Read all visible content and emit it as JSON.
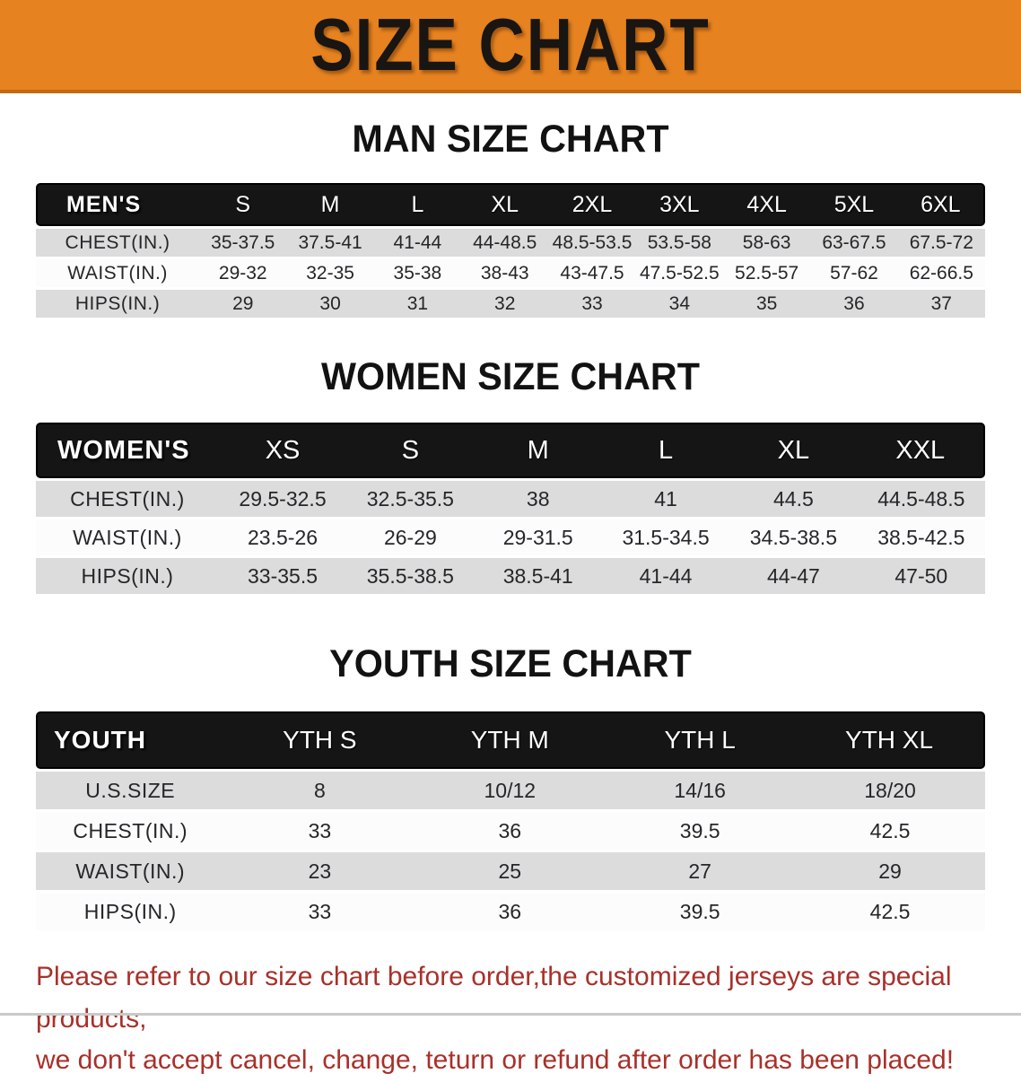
{
  "banner": {
    "title": "SIZE CHART"
  },
  "colors": {
    "banner_orange": "#E6821F",
    "banner_border": "#C4690F",
    "header_black": "#151515",
    "stripe_gray": "#DCDCDC",
    "row_white": "#FCFCFC",
    "disclaimer_red": "#A9302A"
  },
  "sections": {
    "man": {
      "heading": "MAN SIZE CHART",
      "table": {
        "header_label": "MEN'S",
        "sizes": [
          "S",
          "M",
          "L",
          "XL",
          "2XL",
          "3XL",
          "4XL",
          "5XL",
          "6XL"
        ],
        "rows": [
          {
            "label": "CHEST(IN.)",
            "values": [
              "35-37.5",
              "37.5-41",
              "41-44",
              "44-48.5",
              "48.5-53.5",
              "53.5-58",
              "58-63",
              "63-67.5",
              "67.5-72"
            ]
          },
          {
            "label": "WAIST(IN.)",
            "values": [
              "29-32",
              "32-35",
              "35-38",
              "38-43",
              "43-47.5",
              "47.5-52.5",
              "52.5-57",
              "57-62",
              "62-66.5"
            ]
          },
          {
            "label": "HIPS(IN.)",
            "values": [
              "29",
              "30",
              "31",
              "32",
              "33",
              "34",
              "35",
              "36",
              "37"
            ]
          }
        ]
      }
    },
    "women": {
      "heading": "WOMEN SIZE CHART",
      "table": {
        "header_label": "WOMEN'S",
        "sizes": [
          "XS",
          "S",
          "M",
          "L",
          "XL",
          "XXL"
        ],
        "rows": [
          {
            "label": "CHEST(IN.)",
            "values": [
              "29.5-32.5",
              "32.5-35.5",
              "38",
              "41",
              "44.5",
              "44.5-48.5"
            ]
          },
          {
            "label": "WAIST(IN.)",
            "values": [
              "23.5-26",
              "26-29",
              "29-31.5",
              "31.5-34.5",
              "34.5-38.5",
              "38.5-42.5"
            ]
          },
          {
            "label": "HIPS(IN.)",
            "values": [
              "33-35.5",
              "35.5-38.5",
              "38.5-41",
              "41-44",
              "44-47",
              "47-50"
            ]
          }
        ]
      }
    },
    "youth": {
      "heading": "YOUTH SIZE CHART",
      "table": {
        "header_label": "YOUTH",
        "sizes": [
          "YTH S",
          "YTH M",
          "YTH L",
          "YTH XL"
        ],
        "rows": [
          {
            "label": "U.S.SIZE",
            "values": [
              "8",
              "10/12",
              "14/16",
              "18/20"
            ]
          },
          {
            "label": "CHEST(IN.)",
            "values": [
              "33",
              "36",
              "39.5",
              "42.5"
            ]
          },
          {
            "label": "WAIST(IN.)",
            "values": [
              "23",
              "25",
              "27",
              "29"
            ]
          },
          {
            "label": "HIPS(IN.)",
            "values": [
              "33",
              "36",
              "39.5",
              "42.5"
            ]
          }
        ]
      }
    }
  },
  "disclaimer": {
    "line1": "Please refer to our size chart before order,the customized jerseys are special products,",
    "line2": "we don't accept cancel, change, teturn or refund after order has been placed!"
  },
  "chart_data": [
    {
      "type": "table",
      "title": "MAN SIZE CHART",
      "columns": [
        "MEN'S",
        "S",
        "M",
        "L",
        "XL",
        "2XL",
        "3XL",
        "4XL",
        "5XL",
        "6XL"
      ],
      "rows": [
        [
          "CHEST(IN.)",
          "35-37.5",
          "37.5-41",
          "41-44",
          "44-48.5",
          "48.5-53.5",
          "53.5-58",
          "58-63",
          "63-67.5",
          "67.5-72"
        ],
        [
          "WAIST(IN.)",
          "29-32",
          "32-35",
          "35-38",
          "38-43",
          "43-47.5",
          "47.5-52.5",
          "52.5-57",
          "57-62",
          "62-66.5"
        ],
        [
          "HIPS(IN.)",
          "29",
          "30",
          "31",
          "32",
          "33",
          "34",
          "35",
          "36",
          "37"
        ]
      ]
    },
    {
      "type": "table",
      "title": "WOMEN SIZE CHART",
      "columns": [
        "WOMEN'S",
        "XS",
        "S",
        "M",
        "L",
        "XL",
        "XXL"
      ],
      "rows": [
        [
          "CHEST(IN.)",
          "29.5-32.5",
          "32.5-35.5",
          "38",
          "41",
          "44.5",
          "44.5-48.5"
        ],
        [
          "WAIST(IN.)",
          "23.5-26",
          "26-29",
          "29-31.5",
          "31.5-34.5",
          "34.5-38.5",
          "38.5-42.5"
        ],
        [
          "HIPS(IN.)",
          "33-35.5",
          "35.5-38.5",
          "38.5-41",
          "41-44",
          "44-47",
          "47-50"
        ]
      ]
    },
    {
      "type": "table",
      "title": "YOUTH SIZE CHART",
      "columns": [
        "YOUTH",
        "YTH S",
        "YTH M",
        "YTH L",
        "YTH XL"
      ],
      "rows": [
        [
          "U.S.SIZE",
          "8",
          "10/12",
          "14/16",
          "18/20"
        ],
        [
          "CHEST(IN.)",
          "33",
          "36",
          "39.5",
          "42.5"
        ],
        [
          "WAIST(IN.)",
          "23",
          "25",
          "27",
          "29"
        ],
        [
          "HIPS(IN.)",
          "33",
          "36",
          "39.5",
          "42.5"
        ]
      ]
    }
  ]
}
